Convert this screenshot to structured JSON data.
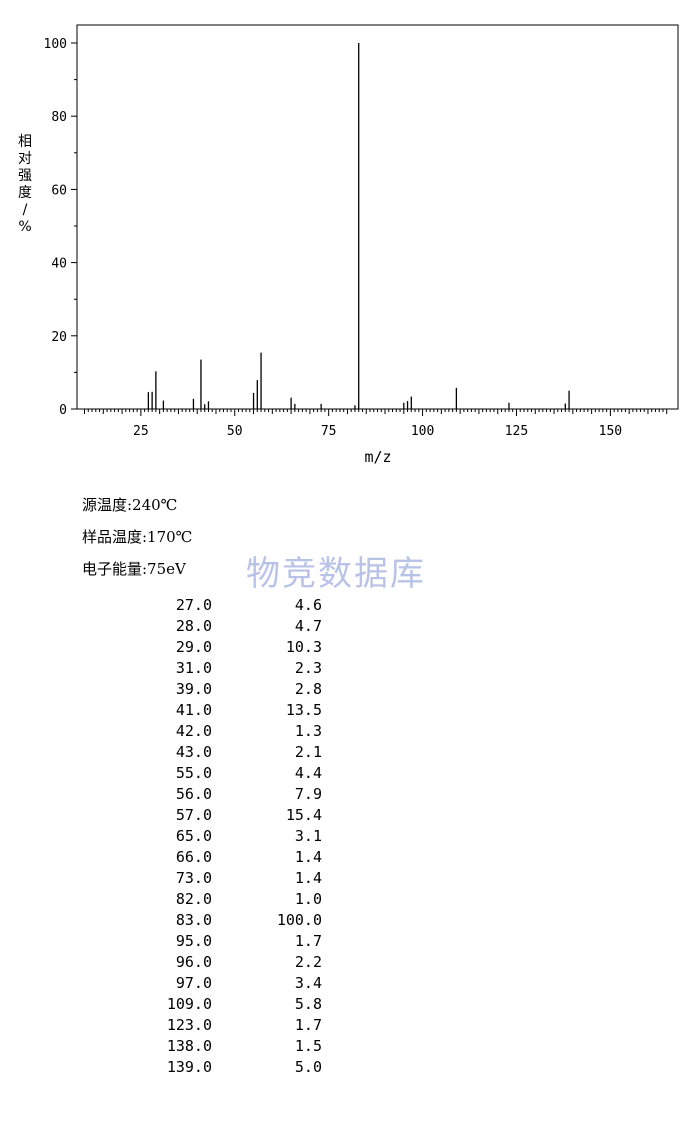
{
  "chart_data": {
    "type": "bar",
    "xlabel": "m/z",
    "ylabel": "相对强度/%",
    "xlim": [
      8,
      168
    ],
    "ylim": [
      0,
      105
    ],
    "xticks": [
      25,
      50,
      75,
      100,
      125,
      150
    ],
    "yticks": [
      0,
      20,
      40,
      60,
      80,
      100
    ],
    "grid": false,
    "peaks": [
      {
        "x": 27,
        "y": 4.6
      },
      {
        "x": 28,
        "y": 4.7
      },
      {
        "x": 29,
        "y": 10.3
      },
      {
        "x": 31,
        "y": 2.3
      },
      {
        "x": 39,
        "y": 2.8
      },
      {
        "x": 41,
        "y": 13.5
      },
      {
        "x": 42,
        "y": 1.3
      },
      {
        "x": 43,
        "y": 2.1
      },
      {
        "x": 55,
        "y": 4.4
      },
      {
        "x": 56,
        "y": 7.9
      },
      {
        "x": 57,
        "y": 15.4
      },
      {
        "x": 65,
        "y": 3.1
      },
      {
        "x": 66,
        "y": 1.4
      },
      {
        "x": 73,
        "y": 1.4
      },
      {
        "x": 82,
        "y": 1.0
      },
      {
        "x": 83,
        "y": 100.0
      },
      {
        "x": 95,
        "y": 1.7
      },
      {
        "x": 96,
        "y": 2.2
      },
      {
        "x": 97,
        "y": 3.4
      },
      {
        "x": 109,
        "y": 5.8
      },
      {
        "x": 123,
        "y": 1.7
      },
      {
        "x": 138,
        "y": 1.5
      },
      {
        "x": 139,
        "y": 5.0
      }
    ]
  },
  "conditions": {
    "source_temp": "源温度:240℃",
    "sample_temp": "样品温度:170℃",
    "electron_energy": "电子能量:75eV"
  },
  "watermark": "物竞数据库",
  "peak_table": [
    {
      "mz": "27.0",
      "abundance": "4.6"
    },
    {
      "mz": "28.0",
      "abundance": "4.7"
    },
    {
      "mz": "29.0",
      "abundance": "10.3"
    },
    {
      "mz": "31.0",
      "abundance": "2.3"
    },
    {
      "mz": "39.0",
      "abundance": "2.8"
    },
    {
      "mz": "41.0",
      "abundance": "13.5"
    },
    {
      "mz": "42.0",
      "abundance": "1.3"
    },
    {
      "mz": "43.0",
      "abundance": "2.1"
    },
    {
      "mz": "55.0",
      "abundance": "4.4"
    },
    {
      "mz": "56.0",
      "abundance": "7.9"
    },
    {
      "mz": "57.0",
      "abundance": "15.4"
    },
    {
      "mz": "65.0",
      "abundance": "3.1"
    },
    {
      "mz": "66.0",
      "abundance": "1.4"
    },
    {
      "mz": "73.0",
      "abundance": "1.4"
    },
    {
      "mz": "82.0",
      "abundance": "1.0"
    },
    {
      "mz": "83.0",
      "abundance": "100.0"
    },
    {
      "mz": "95.0",
      "abundance": "1.7"
    },
    {
      "mz": "96.0",
      "abundance": "2.2"
    },
    {
      "mz": "97.0",
      "abundance": "3.4"
    },
    {
      "mz": "109.0",
      "abundance": "5.8"
    },
    {
      "mz": "123.0",
      "abundance": "1.7"
    },
    {
      "mz": "138.0",
      "abundance": "1.5"
    },
    {
      "mz": "139.0",
      "abundance": "5.0"
    }
  ]
}
